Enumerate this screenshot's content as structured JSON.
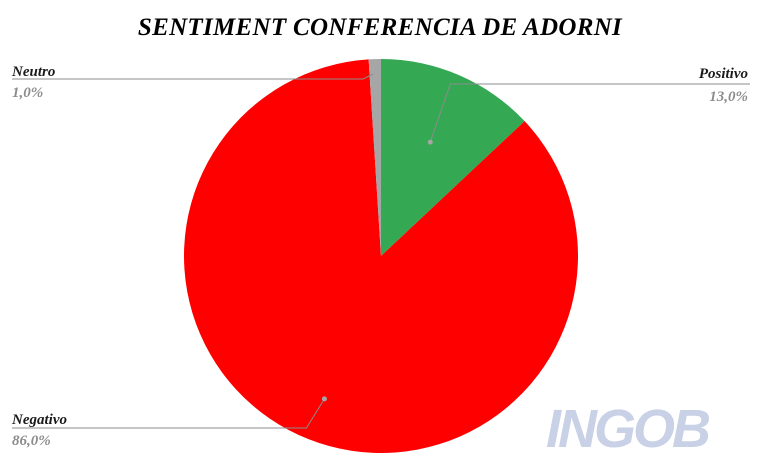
{
  "chart_data": {
    "type": "pie",
    "title": "SENTIMENT CONFERENCIA DE ADORNI",
    "slices": [
      {
        "name": "Positivo",
        "value": 13.0,
        "label": "13,0%",
        "color": "#34a853"
      },
      {
        "name": "Negativo",
        "value": 86.0,
        "label": "86,0%",
        "color": "#ff0000"
      },
      {
        "name": "Neutro",
        "value": 1.0,
        "label": "1,0%",
        "color": "#a6a6a6"
      }
    ],
    "start_angle": "12 o'clock",
    "direction": "clockwise",
    "legend": "none",
    "label_style": "outside labels with leader lines"
  },
  "watermark": {
    "text": "INGOB"
  }
}
